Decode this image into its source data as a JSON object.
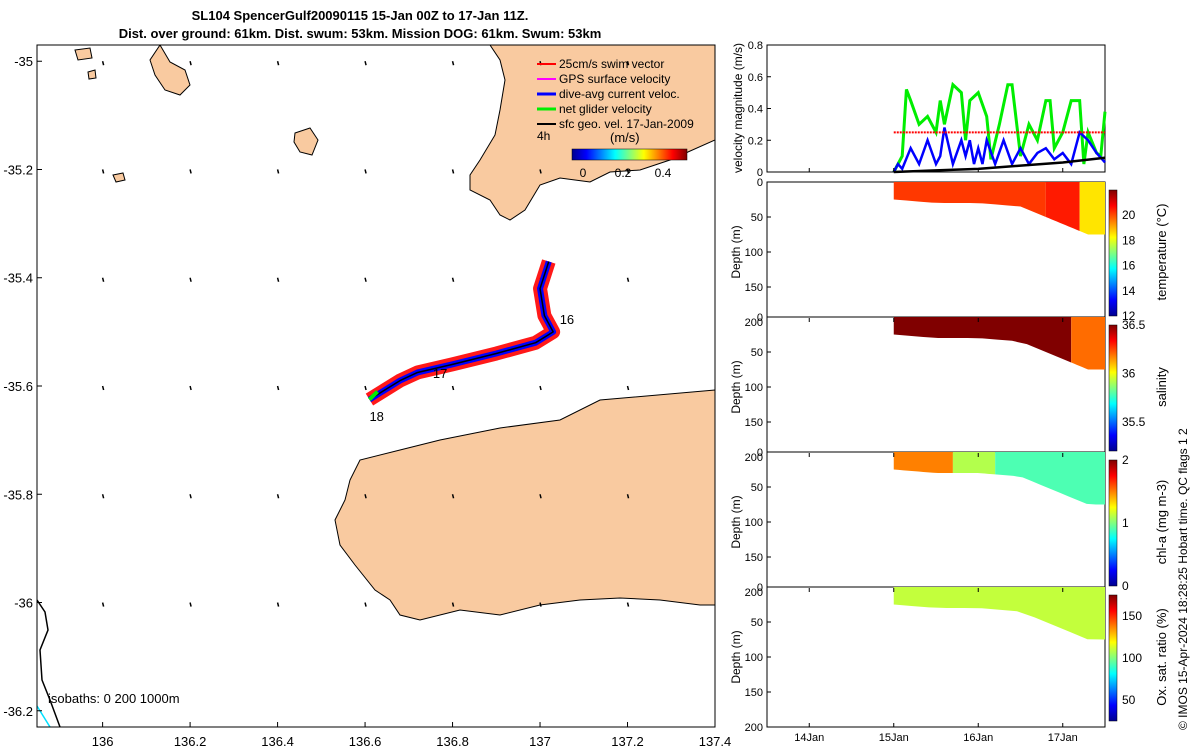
{
  "header": {
    "line1": "SL104 SpencerGulf20090115 15-Jan 00Z to 17-Jan 11Z.",
    "line2": "Dist. over ground: 61km. Dist. swum: 53km. Mission DOG: 61km. Swum: 53km"
  },
  "credit": "© IMOS 15-Apr-2024 18:28:25 Hobart time. QC flags 1  2",
  "colors": {
    "land": "#f9caa0",
    "swim": "#ff0000",
    "gps": "#ff00ff",
    "current": "#0000ff",
    "net": "#00ee00",
    "geo": "#000000",
    "shallow_isobath": "#00e0ff"
  },
  "chart_data": [
    {
      "type": "map",
      "title": "SL104 SpencerGulf20090115 15-Jan 00Z to 17-Jan 11Z.",
      "xlabel": "",
      "ylabel": "",
      "xlim": [
        135.85,
        137.4
      ],
      "ylim": [
        -36.23,
        -34.97
      ],
      "xticks": [
        136,
        136.2,
        136.4,
        136.6,
        136.8,
        137,
        137.2,
        137.4
      ],
      "yticks": [
        -35,
        -35.2,
        -35.4,
        -35.6,
        -35.8,
        -36,
        -36.2
      ],
      "xtick_labels": [
        "136",
        "136.2",
        "136.4",
        "136.6",
        "136.8",
        "137",
        "137.2",
        "137.4"
      ],
      "ytick_labels": [
        "-35",
        "-35.2",
        "-35.4",
        "-35.6",
        "-35.8",
        "-36",
        "-36.2"
      ],
      "legend": {
        "placement": "top-right",
        "entries": [
          "25cm/s swim vector",
          "GPS surface velocity",
          "dive-avg current veloc.",
          "net glider velocity",
          "sfc geo. vel. 17-Jan-2009"
        ]
      },
      "colorbar": {
        "label": "(m/s)",
        "range": [
          0,
          0.5
        ],
        "ticks": [
          "0",
          "0.2",
          "0.4"
        ],
        "time_label": "4h"
      },
      "track": [
        [
          137.02,
          -35.37
        ],
        [
          137.0,
          -35.42
        ],
        [
          137.01,
          -35.47
        ],
        [
          137.03,
          -35.5
        ],
        [
          136.99,
          -35.52
        ],
        [
          136.9,
          -35.54
        ],
        [
          136.8,
          -35.56
        ],
        [
          136.72,
          -35.575
        ],
        [
          136.68,
          -35.59
        ],
        [
          136.64,
          -35.61
        ],
        [
          136.61,
          -35.625
        ]
      ],
      "day_labels": [
        {
          "text": "16",
          "lon": 137.045,
          "lat": -35.485
        },
        {
          "text": "17",
          "lon": 136.755,
          "lat": -35.585
        },
        {
          "text": "18",
          "lon": 136.61,
          "lat": -35.665
        }
      ],
      "isobath_label": "isobaths: 0   200  1000m"
    },
    {
      "type": "line",
      "ylabel": "velocity magnitude (m/s)",
      "ylim": [
        0,
        0.8
      ],
      "yticks": [
        0,
        0.2,
        0.4,
        0.6,
        0.8
      ],
      "ytick_labels": [
        "0",
        "0.2",
        "0.4",
        "0.6",
        "0.8"
      ],
      "x_day_range": [
        13.5,
        17.5
      ],
      "series": [
        {
          "name": "net glider velocity",
          "x": [
            15.0,
            15.1,
            15.15,
            15.2,
            15.3,
            15.4,
            15.5,
            15.55,
            15.6,
            15.7,
            15.8,
            15.85,
            15.9,
            16.0,
            16.1,
            16.15,
            16.25,
            16.35,
            16.4,
            16.5,
            16.6,
            16.7,
            16.8,
            16.85,
            16.9,
            17.0,
            17.1,
            17.2,
            17.25,
            17.3,
            17.4,
            17.45,
            17.5
          ],
          "values": [
            0.0,
            0.1,
            0.52,
            0.45,
            0.3,
            0.35,
            0.25,
            0.45,
            0.3,
            0.55,
            0.5,
            0.2,
            0.45,
            0.5,
            0.35,
            0.08,
            0.3,
            0.55,
            0.55,
            0.1,
            0.3,
            0.2,
            0.45,
            0.45,
            0.15,
            0.25,
            0.45,
            0.45,
            0.05,
            0.25,
            0.12,
            0.1,
            0.38
          ]
        },
        {
          "name": "dive-avg current veloc.",
          "x": [
            15.0,
            15.05,
            15.1,
            15.2,
            15.3,
            15.4,
            15.5,
            15.55,
            15.6,
            15.7,
            15.8,
            15.85,
            15.9,
            15.95,
            16.0,
            16.05,
            16.1,
            16.2,
            16.3,
            16.4,
            16.5,
            16.6,
            16.7,
            16.8,
            16.9,
            17.0,
            17.1,
            17.2,
            17.3,
            17.4,
            17.5
          ],
          "values": [
            0.0,
            0.05,
            0.02,
            0.15,
            0.05,
            0.2,
            0.05,
            0.1,
            0.28,
            0.05,
            0.2,
            0.1,
            0.2,
            0.05,
            0.15,
            0.05,
            0.2,
            0.05,
            0.2,
            0.05,
            0.15,
            0.05,
            0.12,
            0.15,
            0.08,
            0.12,
            0.05,
            0.25,
            0.2,
            0.12,
            0.06
          ]
        },
        {
          "name": "25cm/s swim vector",
          "x": [
            15.0,
            17.5
          ],
          "values": [
            0.25,
            0.25
          ]
        },
        {
          "name": "sfc geo. vel.",
          "x": [
            15.0,
            15.5,
            16.0,
            16.5,
            17.0,
            17.5
          ],
          "values": [
            0.0,
            0.01,
            0.02,
            0.04,
            0.06,
            0.09
          ]
        }
      ],
      "categories": [
        "14Jan",
        "15Jan",
        "16Jan",
        "17Jan"
      ],
      "category_days": [
        14,
        15,
        16,
        17
      ]
    },
    {
      "type": "heatmap",
      "ylabel": "Depth (m)",
      "ylim": [
        0,
        200
      ],
      "yticks": [
        "0",
        "50",
        "100",
        "150",
        "200"
      ],
      "colorbar": {
        "label": "temperature (°C)",
        "range": [
          12,
          22
        ],
        "ticks": [
          "12",
          "14",
          "16",
          "18",
          "20"
        ]
      },
      "x_day_range": [
        15.0,
        17.5
      ],
      "max_depth_by_day": [
        [
          15.0,
          25
        ],
        [
          15.5,
          30
        ],
        [
          16.0,
          30
        ],
        [
          16.5,
          35
        ],
        [
          17.0,
          60
        ],
        [
          17.3,
          75
        ],
        [
          17.5,
          75
        ]
      ],
      "layers": [
        {
          "day_from": 15.0,
          "day_to": 16.8,
          "value": 20.2
        },
        {
          "day_from": 16.8,
          "day_to": 17.2,
          "value": 20.5
        },
        {
          "day_from": 17.2,
          "day_to": 17.5,
          "value": 18.5
        }
      ]
    },
    {
      "type": "heatmap",
      "ylabel": "Depth (m)",
      "ylim": [
        0,
        200
      ],
      "yticks": [
        "0",
        "50",
        "100",
        "150",
        "200"
      ],
      "colorbar": {
        "label": "salinity",
        "range": [
          35.2,
          36.5
        ],
        "ticks": [
          "35.5",
          "36",
          "36.5"
        ]
      },
      "x_day_range": [
        15.0,
        17.5
      ],
      "max_depth_by_day": [
        [
          15.0,
          25
        ],
        [
          15.5,
          30
        ],
        [
          16.0,
          30
        ],
        [
          16.5,
          35
        ],
        [
          17.0,
          60
        ],
        [
          17.3,
          75
        ],
        [
          17.5,
          75
        ]
      ],
      "layers": [
        {
          "day_from": 15.0,
          "day_to": 17.1,
          "value": 36.5
        },
        {
          "day_from": 17.1,
          "day_to": 17.5,
          "value": 36.2
        }
      ]
    },
    {
      "type": "heatmap",
      "ylabel": "Depth (m)",
      "ylim": [
        0,
        200
      ],
      "yticks": [
        "0",
        "50",
        "100",
        "150",
        "200"
      ],
      "colorbar": {
        "label": "chl-a (mg m-3)",
        "range": [
          0,
          2
        ],
        "ticks": [
          "0",
          "1",
          "2"
        ]
      },
      "x_day_range": [
        15.0,
        17.5
      ],
      "max_depth_by_day": [
        [
          15.0,
          25
        ],
        [
          15.5,
          30
        ],
        [
          16.0,
          30
        ],
        [
          16.5,
          35
        ],
        [
          17.0,
          60
        ],
        [
          17.3,
          75
        ],
        [
          17.5,
          75
        ]
      ],
      "layers": [
        {
          "day_from": 15.0,
          "day_to": 15.7,
          "value": 1.5
        },
        {
          "day_from": 15.7,
          "day_to": 16.2,
          "value": 1.1
        },
        {
          "day_from": 16.2,
          "day_to": 17.5,
          "value": 0.9
        }
      ]
    },
    {
      "type": "heatmap",
      "ylabel": "Depth (m)",
      "ylim": [
        0,
        200
      ],
      "yticks": [
        "0",
        "50",
        "100",
        "150",
        "200"
      ],
      "colorbar": {
        "label": "Ox. sat. ratio (%)",
        "range": [
          25,
          175
        ],
        "ticks": [
          "50",
          "100",
          "150"
        ]
      },
      "x_day_range": [
        15.0,
        17.5
      ],
      "max_depth_by_day": [
        [
          15.0,
          25
        ],
        [
          15.5,
          30
        ],
        [
          16.0,
          30
        ],
        [
          16.5,
          35
        ],
        [
          17.0,
          60
        ],
        [
          17.3,
          75
        ],
        [
          17.5,
          75
        ]
      ],
      "layers": [
        {
          "day_from": 15.0,
          "day_to": 17.5,
          "value": 110
        }
      ]
    }
  ]
}
